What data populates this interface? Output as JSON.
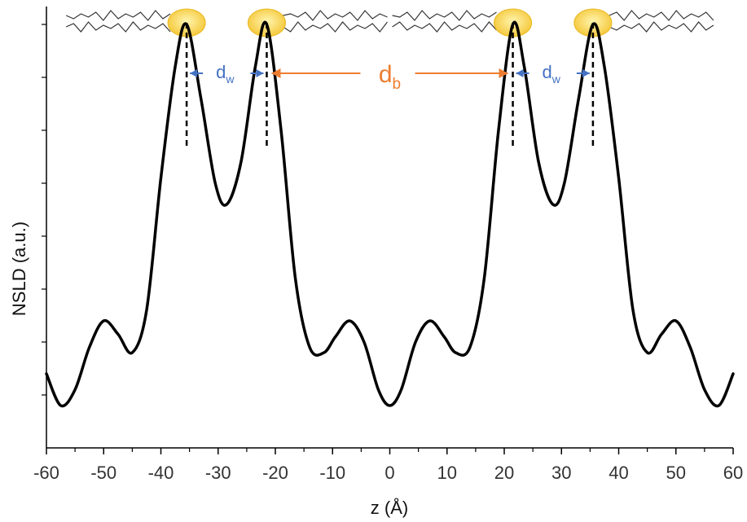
{
  "chart_data": {
    "type": "line",
    "title": "",
    "xlabel": "z (Å)",
    "ylabel": "NSLD (a.u.)",
    "xlim": [
      -60,
      60
    ],
    "ylim": [
      0,
      8
    ],
    "x_ticks": [
      -60,
      -50,
      -40,
      -30,
      -20,
      -10,
      0,
      10,
      20,
      30,
      40,
      50,
      60
    ],
    "x_tick_labels": [
      "-60",
      "-50",
      "-40",
      "-30",
      "-20",
      "-10",
      "0",
      "10",
      "20",
      "30",
      "40",
      "50",
      "60"
    ],
    "y_ticks": [
      1,
      2,
      3,
      4,
      5,
      6,
      7,
      8
    ],
    "grid": false,
    "legend": "none",
    "line_color": "#000000",
    "series": [
      {
        "x": [
          -60,
          -57.5,
          -55,
          -52.5,
          -50,
          -47.5,
          -45,
          -42.5,
          -40,
          -37.5,
          -35.5,
          -33,
          -30.5,
          -28.5,
          -26,
          -23.5,
          -21.5,
          -19,
          -16.5,
          -14,
          -11.5,
          -9.5,
          -7,
          -4.5,
          -2,
          0,
          2,
          4.5,
          7,
          9.5,
          11.5,
          14,
          16.5,
          19,
          21.5,
          23.5,
          26,
          28.5,
          30.5,
          33,
          35.5,
          37.5,
          40,
          42.5,
          45,
          47.5,
          50,
          52.5,
          55,
          57.5,
          60
        ],
        "y": [
          1.4,
          0.8,
          1.1,
          1.9,
          2.4,
          2.15,
          1.8,
          2.6,
          5.1,
          7.2,
          8.0,
          6.6,
          5.0,
          4.6,
          5.4,
          7.2,
          8.0,
          6.0,
          3.2,
          1.9,
          1.8,
          2.1,
          2.4,
          2.0,
          1.1,
          0.8,
          1.1,
          2.0,
          2.4,
          2.1,
          1.8,
          1.9,
          3.2,
          6.0,
          8.0,
          7.2,
          5.4,
          4.6,
          5.0,
          6.6,
          8.0,
          7.2,
          5.1,
          2.6,
          1.8,
          2.15,
          2.4,
          1.9,
          1.1,
          0.8,
          1.4
        ]
      }
    ],
    "peak_positions": [
      -35.5,
      -21.5,
      21.5,
      35.5
    ],
    "annotations": {
      "dw_main": "d",
      "dw_sub": "w",
      "db_main": "d",
      "db_sub": "b",
      "dw_color": "#4472c4",
      "db_color": "#ed7d31",
      "headgroup_color": "#f4c430"
    }
  }
}
